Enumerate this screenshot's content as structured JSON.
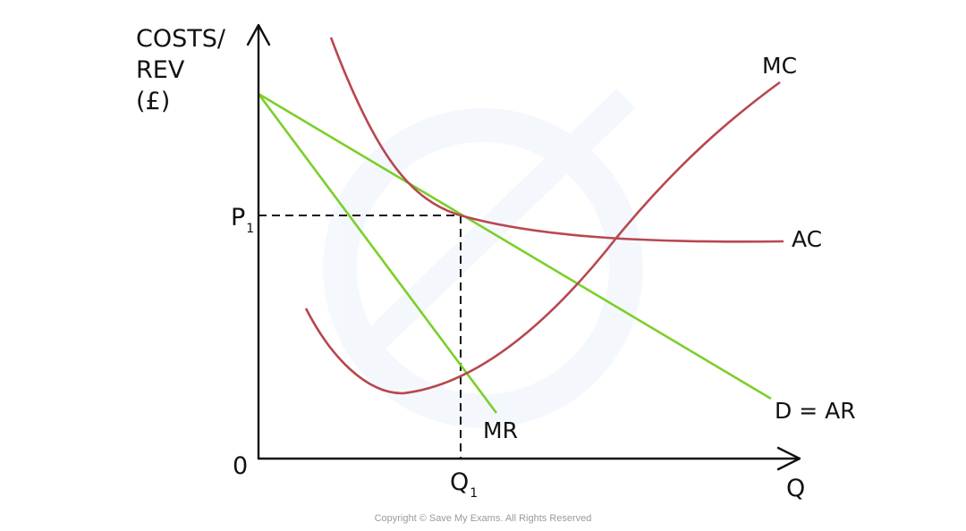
{
  "diagram": {
    "y_axis_label": [
      "COSTS/",
      "REV",
      "(£)"
    ],
    "x_axis_label": "Q",
    "origin_label": "0",
    "price_label": {
      "main": "P",
      "sub": "1"
    },
    "quantity_label": {
      "main": "Q",
      "sub": "1"
    },
    "curves": {
      "mc": {
        "label": "MC",
        "color": "#b8474f"
      },
      "ac": {
        "label": "AC",
        "color": "#b8474f"
      },
      "demand": {
        "label": "D = AR",
        "color": "#7ccf2a"
      },
      "mr": {
        "label": "MR",
        "color": "#7ccf2a"
      }
    },
    "axis_color": "#111111",
    "copyright": "Copyright © Save My Exams. All Rights Reserved"
  }
}
